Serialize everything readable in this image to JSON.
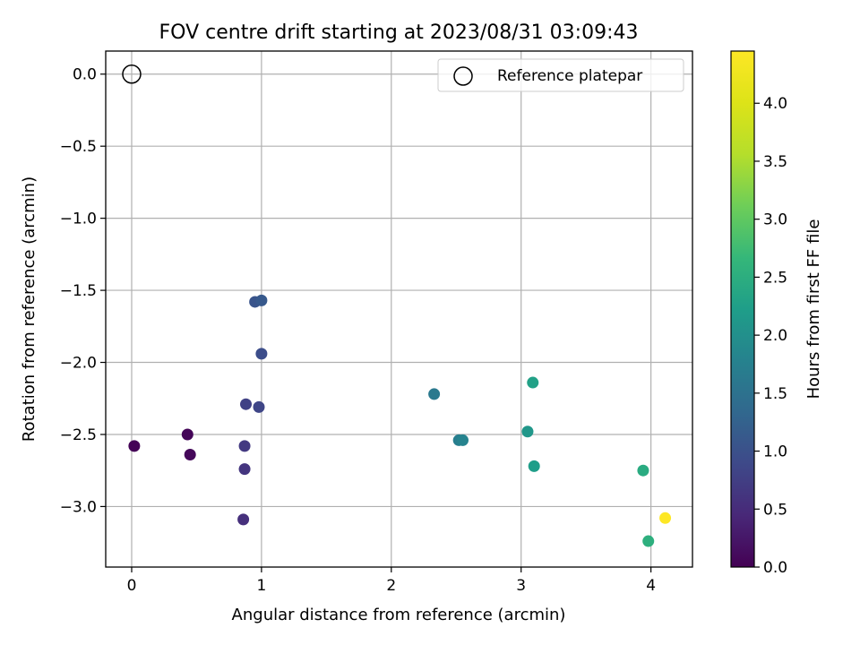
{
  "chart_data": {
    "type": "scatter",
    "title": "FOV centre drift starting at 2023/08/31 03:09:43",
    "xlabel": "Angular distance from reference (arcmin)",
    "ylabel": "Rotation from reference (arcmin)",
    "xlim": [
      -0.2,
      4.32
    ],
    "ylim": [
      -3.42,
      0.16
    ],
    "xticks": [
      0,
      1,
      2,
      3,
      4
    ],
    "yticks": [
      0.0,
      -0.5,
      -1.0,
      -1.5,
      -2.0,
      -2.5,
      -3.0
    ],
    "grid": true,
    "legend": {
      "placement": "top-right",
      "entries": [
        "Reference platepar"
      ]
    },
    "reference_point": {
      "name": "Reference platepar",
      "x": 0.0,
      "y": 0.0,
      "marker": "hollow-circle"
    },
    "colorbar": {
      "label": "Hours from first FF file",
      "colormap": "viridis",
      "range": [
        0.0,
        4.45
      ],
      "ticks": [
        0.0,
        0.5,
        1.0,
        1.5,
        2.0,
        2.5,
        3.0,
        3.5,
        4.0
      ]
    },
    "series": [
      {
        "points": [
          {
            "x": 0.02,
            "y": -2.58,
            "hours": 0.02
          },
          {
            "x": 0.43,
            "y": -2.5,
            "hours": 0.05
          },
          {
            "x": 0.45,
            "y": -2.64,
            "hours": 0.08
          },
          {
            "x": 0.86,
            "y": -3.09,
            "hours": 0.55
          },
          {
            "x": 0.87,
            "y": -2.74,
            "hours": 0.62
          },
          {
            "x": 0.87,
            "y": -2.58,
            "hours": 0.68
          },
          {
            "x": 0.88,
            "y": -2.29,
            "hours": 0.78
          },
          {
            "x": 0.98,
            "y": -2.31,
            "hours": 0.85
          },
          {
            "x": 1.0,
            "y": -1.94,
            "hours": 0.95
          },
          {
            "x": 0.95,
            "y": -1.58,
            "hours": 1.05
          },
          {
            "x": 1.0,
            "y": -1.57,
            "hours": 1.12
          },
          {
            "x": 2.33,
            "y": -2.22,
            "hours": 1.62
          },
          {
            "x": 2.52,
            "y": -2.54,
            "hours": 1.72
          },
          {
            "x": 2.55,
            "y": -2.54,
            "hours": 1.8
          },
          {
            "x": 3.05,
            "y": -2.48,
            "hours": 2.12
          },
          {
            "x": 3.1,
            "y": -2.72,
            "hours": 2.22
          },
          {
            "x": 3.09,
            "y": -2.14,
            "hours": 2.28
          },
          {
            "x": 3.94,
            "y": -2.75,
            "hours": 2.45
          },
          {
            "x": 3.98,
            "y": -3.24,
            "hours": 2.52
          },
          {
            "x": 4.11,
            "y": -3.08,
            "hours": 4.45
          }
        ]
      }
    ]
  }
}
